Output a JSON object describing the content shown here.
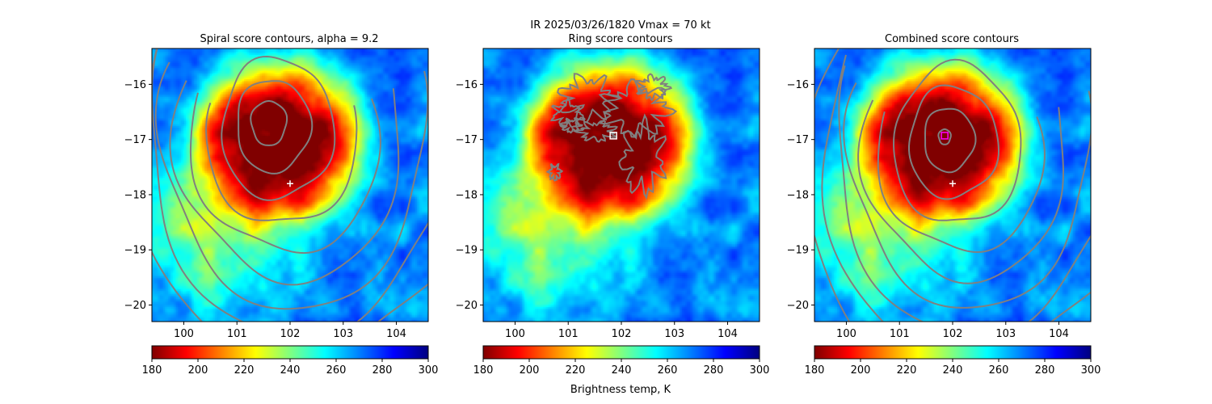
{
  "suptitle": "IR  2025/03/26/1820    Vmax = 70 kt",
  "colorbar_label": "Brightness temp, K",
  "colorbar_ticks": [
    "180",
    "200",
    "220",
    "240",
    "260",
    "280",
    "300"
  ],
  "colormap": "jet",
  "colorbar_stops": [
    "#800000",
    "#ff0000",
    "#ff8000",
    "#ffff00",
    "#80ff80",
    "#00ffff",
    "#0080ff",
    "#0000ff",
    "#000080"
  ],
  "contour_color": "#808080",
  "chart_data": [
    {
      "type": "heatmap",
      "title": "Spiral score contours, alpha =  9.2",
      "x_ticks": [
        "100",
        "101",
        "102",
        "103",
        "104"
      ],
      "y_ticks": [
        "−16",
        "−17",
        "−18",
        "−19",
        "−20"
      ],
      "xlim": [
        99.4,
        104.6
      ],
      "ylim": [
        -20.3,
        -15.35
      ],
      "clim": [
        180,
        300
      ],
      "overlay": "spiral_contours",
      "spiral_center": [
        101.6,
        -16.7
      ],
      "marker": {
        "symbol": "plus",
        "lon": 102.0,
        "lat": -17.8,
        "color": "#ffffff"
      }
    },
    {
      "type": "heatmap",
      "title": "Ring score contours",
      "x_ticks": [
        "100",
        "101",
        "102",
        "103",
        "104"
      ],
      "y_ticks": [
        "−16",
        "−17",
        "−18",
        "−19",
        "−20"
      ],
      "xlim": [
        99.4,
        104.6
      ],
      "ylim": [
        -20.3,
        -15.35
      ],
      "clim": [
        180,
        300
      ],
      "overlay": "ring_contours",
      "marker": {
        "symbol": "square",
        "lon": 101.85,
        "lat": -16.93,
        "color": "#ffffff"
      }
    },
    {
      "type": "heatmap",
      "title": "Combined score contours",
      "x_ticks": [
        "100",
        "101",
        "102",
        "103",
        "104"
      ],
      "y_ticks": [
        "−16",
        "−17",
        "−18",
        "−19",
        "−20"
      ],
      "xlim": [
        99.4,
        104.6
      ],
      "ylim": [
        -20.3,
        -15.35
      ],
      "clim": [
        180,
        300
      ],
      "overlay": "combined_contours",
      "spiral_center": [
        101.85,
        -16.95
      ],
      "marker": {
        "symbol": "plus",
        "lon": 102.0,
        "lat": -17.8,
        "color": "#ffffff"
      },
      "center_marker": {
        "symbol": "square",
        "lon": 101.85,
        "lat": -16.93,
        "color": "#ff00ff"
      }
    }
  ]
}
